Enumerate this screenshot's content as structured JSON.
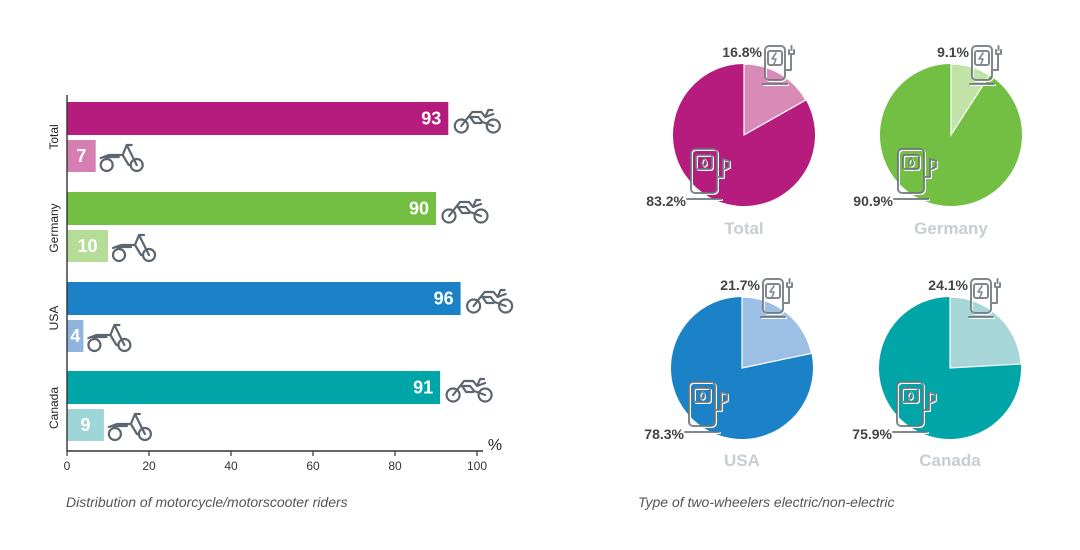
{
  "bar_caption": "Distribution of motorcycle/motorscooter riders",
  "pie_caption": "Type of two-wheelers electric/non-electric",
  "chart_data": [
    {
      "type": "bar",
      "orientation": "horizontal",
      "categories": [
        "Total",
        "Germany",
        "USA",
        "Canada"
      ],
      "series": [
        {
          "name": "",
          "values": [
            93,
            90,
            96,
            91
          ],
          "icon": "motorcycle-icon",
          "colors": [
            "#b51c7d",
            "#72bf44",
            "#1b82c7",
            "#00a5a7"
          ]
        },
        {
          "name": "",
          "values": [
            7,
            10,
            4,
            9
          ],
          "icon": "scooter-icon",
          "colors": [
            "#d77fb2",
            "#b6dd98",
            "#8fb5df",
            "#9ed5d6"
          ]
        }
      ],
      "x_ticks": [
        0,
        20,
        40,
        60,
        80,
        100
      ],
      "xlim": [
        0,
        100
      ],
      "unit": "%",
      "title": "Distribution of motorcycle/motorscooter riders"
    },
    {
      "type": "pie",
      "title": "Type of two-wheelers electric/non-electric",
      "charts": [
        {
          "name": "Total",
          "electric": 16.8,
          "non_electric": 83.2,
          "electric_label": "16.8%",
          "non_electric_label": "83.2%",
          "main_color": "#b51c7d",
          "light_color": "#d98ab7"
        },
        {
          "name": "Germany",
          "electric": 9.1,
          "non_electric": 90.9,
          "electric_label": "9.1%",
          "non_electric_label": "90.9%",
          "main_color": "#72bf44",
          "light_color": "#c2e3a8"
        },
        {
          "name": "USA",
          "electric": 21.7,
          "non_electric": 78.3,
          "electric_label": "21.7%",
          "non_electric_label": "78.3%",
          "main_color": "#1b82c7",
          "light_color": "#9dbee5"
        },
        {
          "name": "Canada",
          "electric": 24.1,
          "non_electric": 75.9,
          "electric_label": "24.1%",
          "non_electric_label": "75.9%",
          "main_color": "#00a5a7",
          "light_color": "#a6d6d7"
        }
      ],
      "icons": [
        "ev-charger-icon",
        "fuel-pump-icon"
      ]
    }
  ]
}
